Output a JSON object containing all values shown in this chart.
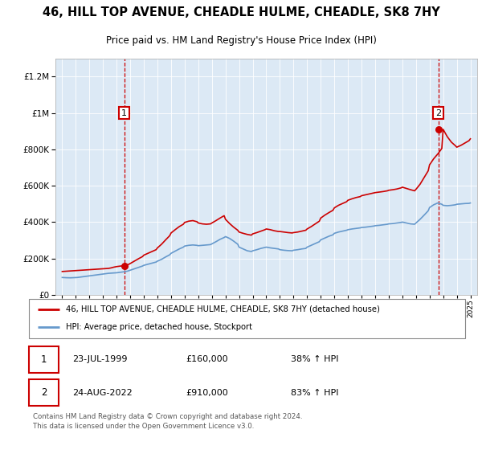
{
  "title": "46, HILL TOP AVENUE, CHEADLE HULME, CHEADLE, SK8 7HY",
  "subtitle": "Price paid vs. HM Land Registry's House Price Index (HPI)",
  "legend_line1": "46, HILL TOP AVENUE, CHEADLE HULME, CHEADLE, SK8 7HY (detached house)",
  "legend_line2": "HPI: Average price, detached house, Stockport",
  "annotation1_date": "23-JUL-1999",
  "annotation1_price": "£160,000",
  "annotation1_hpi": "38% ↑ HPI",
  "annotation2_date": "24-AUG-2022",
  "annotation2_price": "£910,000",
  "annotation2_hpi": "83% ↑ HPI",
  "footer": "Contains HM Land Registry data © Crown copyright and database right 2024.\nThis data is licensed under the Open Government Licence v3.0.",
  "plot_bg_color": "#dce9f5",
  "red_line_color": "#cc0000",
  "blue_line_color": "#6699cc",
  "dashed_vline_color": "#cc0000",
  "box_color": "#cc0000",
  "ylim": [
    0,
    1300000
  ],
  "xlim_start": 1994.5,
  "xlim_end": 2025.5,
  "purchase1_year": 1999.56,
  "purchase2_year": 2022.64,
  "purchase1_price": 160000,
  "purchase2_price": 910000,
  "hpi_years": [
    1995.0,
    1995.1,
    1995.2,
    1995.3,
    1995.4,
    1995.5,
    1995.6,
    1995.7,
    1995.8,
    1995.9,
    1996.0,
    1996.1,
    1996.2,
    1996.3,
    1996.4,
    1996.5,
    1996.6,
    1996.7,
    1996.8,
    1996.9,
    1997.0,
    1997.2,
    1997.4,
    1997.6,
    1997.8,
    1998.0,
    1998.2,
    1998.4,
    1998.6,
    1998.8,
    1999.0,
    1999.2,
    1999.4,
    1999.6,
    1999.8,
    2000.0,
    2000.3,
    2000.6,
    2000.9,
    2001.0,
    2001.3,
    2001.6,
    2001.9,
    2002.0,
    2002.3,
    2002.6,
    2002.9,
    2003.0,
    2003.3,
    2003.6,
    2003.9,
    2004.0,
    2004.3,
    2004.6,
    2004.9,
    2005.0,
    2005.3,
    2005.6,
    2005.9,
    2006.0,
    2006.3,
    2006.6,
    2006.9,
    2007.0,
    2007.3,
    2007.6,
    2007.9,
    2008.0,
    2008.3,
    2008.6,
    2008.9,
    2009.0,
    2009.3,
    2009.6,
    2009.9,
    2010.0,
    2010.3,
    2010.6,
    2010.9,
    2011.0,
    2011.3,
    2011.6,
    2011.9,
    2012.0,
    2012.3,
    2012.6,
    2012.9,
    2013.0,
    2013.3,
    2013.6,
    2013.9,
    2014.0,
    2014.3,
    2014.6,
    2014.9,
    2015.0,
    2015.3,
    2015.6,
    2015.9,
    2016.0,
    2016.3,
    2016.6,
    2016.9,
    2017.0,
    2017.3,
    2017.6,
    2017.9,
    2018.0,
    2018.3,
    2018.6,
    2018.9,
    2019.0,
    2019.3,
    2019.6,
    2019.9,
    2020.0,
    2020.3,
    2020.6,
    2020.9,
    2021.0,
    2021.3,
    2021.6,
    2021.9,
    2022.0,
    2022.3,
    2022.6,
    2022.9,
    2023.0,
    2023.3,
    2023.6,
    2023.9,
    2024.0,
    2024.3,
    2024.6,
    2024.9,
    2025.0
  ],
  "hpi_values": [
    95000,
    94500,
    94000,
    93800,
    93500,
    93000,
    93200,
    93500,
    93800,
    94000,
    94500,
    95000,
    96000,
    97000,
    98000,
    99000,
    100000,
    101000,
    102000,
    103000,
    104000,
    106000,
    108000,
    110000,
    112000,
    114000,
    116000,
    118000,
    119000,
    120000,
    121000,
    123000,
    125000,
    127000,
    130000,
    135000,
    142000,
    150000,
    158000,
    162000,
    168000,
    174000,
    180000,
    185000,
    195000,
    208000,
    220000,
    228000,
    240000,
    252000,
    262000,
    268000,
    272000,
    274000,
    272000,
    270000,
    272000,
    274000,
    276000,
    280000,
    292000,
    305000,
    315000,
    320000,
    310000,
    295000,
    278000,
    262000,
    252000,
    242000,
    238000,
    242000,
    248000,
    255000,
    260000,
    262000,
    258000,
    255000,
    252000,
    248000,
    245000,
    243000,
    242000,
    245000,
    248000,
    252000,
    255000,
    262000,
    272000,
    282000,
    292000,
    302000,
    312000,
    322000,
    330000,
    338000,
    345000,
    350000,
    355000,
    358000,
    362000,
    365000,
    368000,
    370000,
    372000,
    375000,
    378000,
    380000,
    382000,
    385000,
    388000,
    390000,
    392000,
    395000,
    398000,
    400000,
    395000,
    390000,
    388000,
    395000,
    415000,
    438000,
    462000,
    480000,
    495000,
    505000,
    498000,
    492000,
    490000,
    492000,
    495000,
    498000,
    500000,
    502000,
    503000,
    505000
  ],
  "red_years": [
    1995.0,
    1995.1,
    1995.2,
    1995.3,
    1995.4,
    1995.5,
    1995.6,
    1995.7,
    1995.8,
    1995.9,
    1996.0,
    1996.2,
    1996.4,
    1996.6,
    1996.8,
    1997.0,
    1997.2,
    1997.4,
    1997.6,
    1997.8,
    1998.0,
    1998.2,
    1998.4,
    1998.6,
    1998.8,
    1999.0,
    1999.2,
    1999.4,
    1999.56,
    1999.8,
    2000.0,
    2000.3,
    2000.6,
    2000.9,
    2001.0,
    2001.3,
    2001.6,
    2001.9,
    2002.0,
    2002.3,
    2002.6,
    2002.9,
    2003.0,
    2003.3,
    2003.6,
    2003.9,
    2004.0,
    2004.3,
    2004.6,
    2004.9,
    2005.0,
    2005.3,
    2005.6,
    2005.9,
    2006.0,
    2006.3,
    2006.6,
    2006.9,
    2007.0,
    2007.3,
    2007.6,
    2007.9,
    2008.0,
    2008.3,
    2008.6,
    2008.9,
    2009.0,
    2009.3,
    2009.6,
    2009.9,
    2010.0,
    2010.3,
    2010.6,
    2010.9,
    2011.0,
    2011.3,
    2011.6,
    2011.9,
    2012.0,
    2012.3,
    2012.6,
    2012.9,
    2013.0,
    2013.3,
    2013.6,
    2013.9,
    2014.0,
    2014.3,
    2014.6,
    2014.9,
    2015.0,
    2015.3,
    2015.6,
    2015.9,
    2016.0,
    2016.3,
    2016.6,
    2016.9,
    2017.0,
    2017.3,
    2017.6,
    2017.9,
    2018.0,
    2018.3,
    2018.6,
    2018.9,
    2019.0,
    2019.3,
    2019.6,
    2019.9,
    2020.0,
    2020.3,
    2020.6,
    2020.9,
    2021.0,
    2021.3,
    2021.6,
    2021.9,
    2022.0,
    2022.3,
    2022.64,
    2022.9,
    2023.0,
    2023.3,
    2023.6,
    2023.9,
    2024.0,
    2024.3,
    2024.6,
    2024.9,
    2025.0
  ],
  "red_values": [
    128000,
    128500,
    129000,
    129500,
    130000,
    130500,
    131000,
    131500,
    132000,
    132500,
    133000,
    134000,
    135000,
    136000,
    137000,
    138000,
    139000,
    140000,
    141000,
    142000,
    143000,
    144000,
    145000,
    148000,
    152000,
    155000,
    157000,
    159000,
    160000,
    164000,
    172000,
    185000,
    198000,
    210000,
    218000,
    228000,
    238000,
    248000,
    258000,
    278000,
    302000,
    325000,
    340000,
    358000,
    375000,
    388000,
    398000,
    405000,
    408000,
    402000,
    395000,
    390000,
    388000,
    390000,
    395000,
    408000,
    422000,
    435000,
    415000,
    392000,
    372000,
    355000,
    345000,
    338000,
    332000,
    328000,
    335000,
    342000,
    350000,
    358000,
    362000,
    358000,
    352000,
    348000,
    348000,
    345000,
    342000,
    340000,
    342000,
    345000,
    350000,
    355000,
    362000,
    375000,
    390000,
    405000,
    422000,
    438000,
    452000,
    465000,
    478000,
    492000,
    502000,
    512000,
    520000,
    528000,
    535000,
    540000,
    545000,
    550000,
    555000,
    560000,
    562000,
    565000,
    568000,
    572000,
    575000,
    578000,
    582000,
    588000,
    592000,
    585000,
    578000,
    572000,
    580000,
    608000,
    645000,
    682000,
    715000,
    748000,
    778000,
    805000,
    910000,
    870000,
    840000,
    820000,
    812000,
    822000,
    835000,
    848000,
    858000
  ]
}
